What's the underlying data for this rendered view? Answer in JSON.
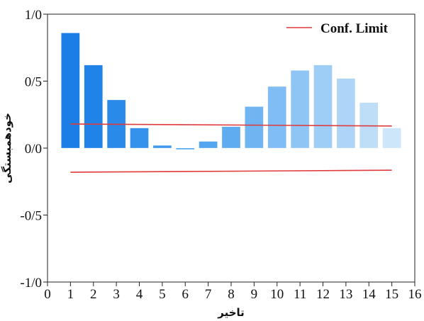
{
  "chart_data": {
    "type": "bar",
    "x": [
      1,
      2,
      3,
      4,
      5,
      6,
      7,
      8,
      9,
      10,
      11,
      12,
      13,
      14,
      15
    ],
    "values": [
      0.86,
      0.62,
      0.36,
      0.15,
      0.02,
      -0.01,
      0.05,
      0.16,
      0.31,
      0.46,
      0.58,
      0.62,
      0.52,
      0.34,
      0.15
    ],
    "bar_colors": [
      "#1a7ee6",
      "#1f83e8",
      "#2a8aea",
      "#3592ec",
      "#4098ee",
      "#4a9fef",
      "#55a6f0",
      "#60acf1",
      "#70b4f2",
      "#80bdf4",
      "#8fc5f5",
      "#9ecdf6",
      "#aed5f7",
      "#bedef8",
      "#cde6fa"
    ],
    "conf_limit": {
      "upper": {
        "x": [
          1,
          15
        ],
        "y": [
          0.18,
          0.165
        ]
      },
      "lower": {
        "x": [
          1,
          15
        ],
        "y": [
          -0.18,
          -0.165
        ]
      },
      "color": "#e03a3a"
    },
    "xlabel": "تاخیر",
    "ylabel": "خودهمبستگی",
    "xlim": [
      0,
      16
    ],
    "ylim": [
      -1.0,
      1.0
    ],
    "x_ticks": [
      "0",
      "1",
      "2",
      "3",
      "4",
      "5",
      "6",
      "7",
      "8",
      "9",
      "10",
      "11",
      "12",
      "13",
      "14",
      "15",
      "16"
    ],
    "y_ticks": [
      {
        "value": 1.0,
        "label": "1/0"
      },
      {
        "value": 0.5,
        "label": "0/5"
      },
      {
        "value": 0.0,
        "label": "0/0"
      },
      {
        "value": -0.5,
        "label": "-0/5"
      },
      {
        "value": -1.0,
        "label": "-1/0"
      }
    ],
    "legend": {
      "label": "Conf. Limit",
      "position": "top-right"
    },
    "grid": false
  }
}
